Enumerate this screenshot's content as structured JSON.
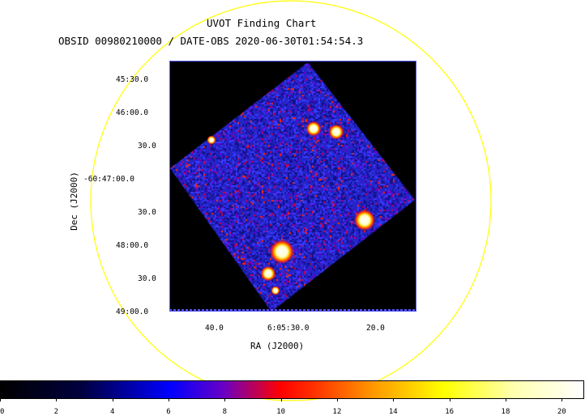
{
  "header": {
    "title": "UVOT Finding Chart",
    "subtitle": "OBSID 00980210000 / DATE-OBS 2020-06-30T01:54:54.3"
  },
  "axes": {
    "xlabel": "RA (J2000)",
    "ylabel": "Dec (J2000)",
    "x_ticks": [
      "40.0",
      "6:05:30.0",
      "20.0"
    ],
    "y_ticks": [
      "45:30.0",
      "46:00.0",
      "30.0",
      "-60:47:00.0",
      "30.0",
      "48:00.0",
      "30.0",
      "49:00.0"
    ]
  },
  "colorbar": {
    "ticks": [
      "0",
      "2",
      "4",
      "6",
      "8",
      "10",
      "12",
      "14",
      "16",
      "18",
      "20"
    ],
    "range": [
      0,
      20.8
    ]
  },
  "colors": {
    "circle": "#ffff00",
    "background": "#000000",
    "field": "#2424c8",
    "plot_frame": "#5555ff"
  },
  "sources": [
    {
      "ra": "6:05:30.3",
      "dec": "-60:48:10",
      "brightness": "high"
    },
    {
      "ra": "6:05:19.8",
      "dec": "-60:47:48",
      "brightness": "high"
    },
    {
      "ra": "6:05:31.9",
      "dec": "-60:48:22",
      "brightness": "medium"
    },
    {
      "ra": "6:05:26.7",
      "dec": "-60:46:13",
      "brightness": "medium"
    },
    {
      "ra": "6:05:24.6",
      "dec": "-60:46:15",
      "brightness": "medium"
    },
    {
      "ra": "6:05:41.1",
      "dec": "-60:46:28",
      "brightness": "low"
    }
  ]
}
